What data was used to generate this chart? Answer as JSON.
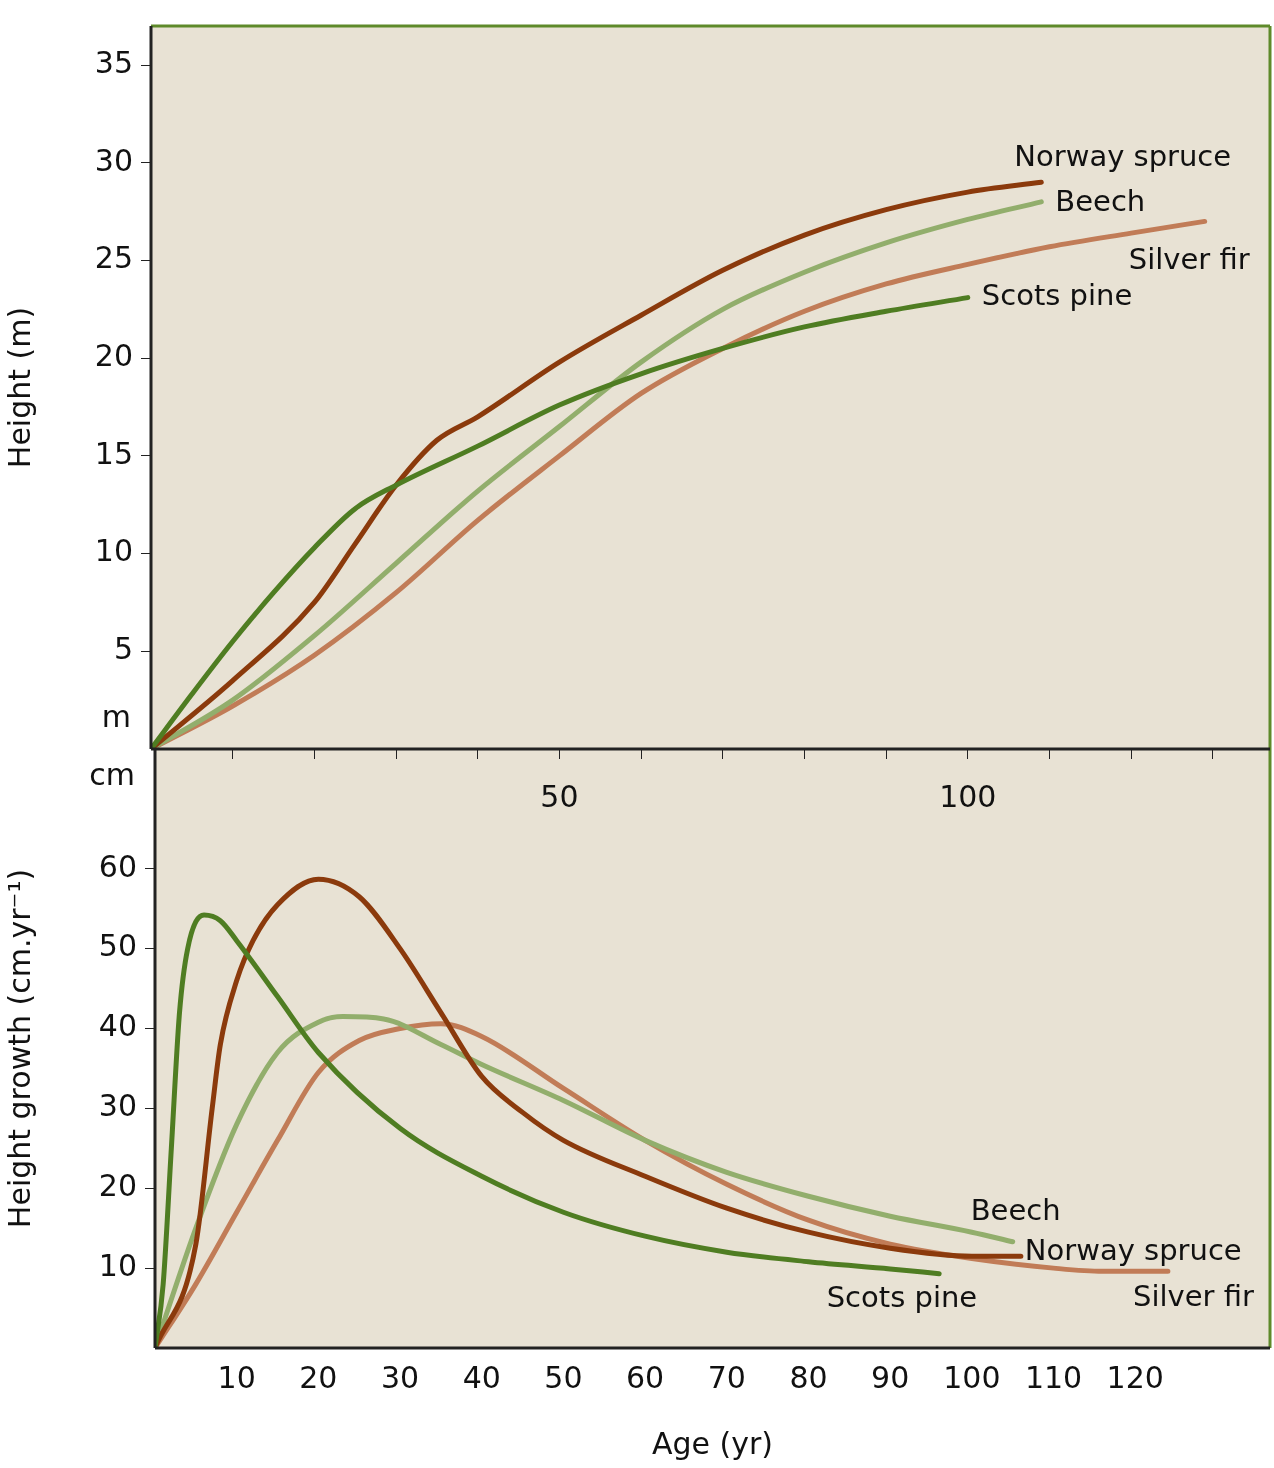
{
  "chart_data": [
    {
      "type": "line",
      "ylabel": "Height (m)",
      "annotations": [
        "m"
      ],
      "xlim": [
        0,
        137
      ],
      "xticks": [
        {
          "value": 10,
          "label": null
        },
        {
          "value": 20,
          "label": null
        },
        {
          "value": 30,
          "label": null
        },
        {
          "value": 40,
          "label": null
        },
        50,
        {
          "value": 60,
          "label": null
        },
        {
          "value": 70,
          "label": null
        },
        {
          "value": 80,
          "label": null
        },
        {
          "value": 90,
          "label": null
        },
        100,
        {
          "value": 110,
          "label": null
        },
        {
          "value": 120,
          "label": null
        },
        {
          "value": 130,
          "label": null
        }
      ],
      "ylim": [
        0,
        37
      ],
      "yticks": [
        5,
        10,
        15,
        20,
        25,
        30,
        35
      ],
      "grid": false,
      "legend": false,
      "marker": "none",
      "series": [
        {
          "name": "Scots pine",
          "color": "#4f7d22",
          "x": [
            0,
            5,
            10,
            15,
            20,
            25,
            30,
            40,
            50,
            60,
            70,
            80,
            90,
            100
          ],
          "values": [
            0,
            2.8,
            5.5,
            8,
            10.3,
            12.3,
            13.5,
            15.5,
            17.6,
            19.2,
            20.5,
            21.6,
            22.4,
            23.1
          ]
        },
        {
          "name": "Norway spruce",
          "color": "#8b3a0c",
          "x": [
            0,
            10,
            20,
            25,
            30,
            35,
            40,
            50,
            60,
            70,
            80,
            90,
            100,
            109
          ],
          "values": [
            0,
            3.5,
            7.5,
            10.5,
            13.5,
            15.8,
            17,
            19.8,
            22.2,
            24.5,
            26.3,
            27.6,
            28.5,
            29
          ]
        },
        {
          "name": "Beech",
          "color": "#92ae6c",
          "x": [
            0,
            10,
            20,
            30,
            40,
            50,
            60,
            70,
            80,
            90,
            100,
            109
          ],
          "values": [
            0,
            2.5,
            5.8,
            9.5,
            13.2,
            16.5,
            19.8,
            22.5,
            24.4,
            25.9,
            27.1,
            28
          ]
        },
        {
          "name": "Silver fir",
          "color": "#c17c57",
          "x": [
            0,
            10,
            20,
            30,
            40,
            50,
            60,
            70,
            80,
            90,
            100,
            110,
            120,
            129
          ],
          "values": [
            0,
            2.2,
            4.8,
            8,
            11.7,
            15,
            18.2,
            20.5,
            22.4,
            23.8,
            24.8,
            25.7,
            26.4,
            27
          ]
        }
      ]
    },
    {
      "type": "line",
      "xlabel": "Age (yr)",
      "ylabel": "Height growth (cm.yr⁻¹)",
      "annotations": [
        "cm"
      ],
      "xlim": [
        0,
        136.5
      ],
      "xticks": [
        10,
        20,
        30,
        40,
        50,
        60,
        70,
        80,
        90,
        100,
        110,
        120
      ],
      "ylim": [
        0,
        75
      ],
      "yticks": [
        10,
        20,
        30,
        40,
        50,
        60
      ],
      "grid": false,
      "legend": false,
      "marker": "none",
      "series": [
        {
          "name": "Scots pine",
          "color": "#4f7d22",
          "x": [
            0,
            1,
            2,
            3,
            4,
            6,
            8,
            10,
            15,
            20,
            30,
            40,
            50,
            60,
            70,
            80,
            90,
            96
          ],
          "values": [
            0,
            8,
            25,
            42,
            50,
            54.2,
            53.5,
            51,
            44,
            37,
            27.5,
            21.5,
            17,
            14,
            12,
            10.8,
            9.9,
            9.3
          ]
        },
        {
          "name": "Norway spruce",
          "color": "#8b3a0c",
          "x": [
            0,
            5,
            7,
            8,
            10,
            12,
            15,
            20,
            25,
            30,
            35,
            40,
            45,
            50,
            60,
            70,
            80,
            90,
            100,
            106
          ],
          "values": [
            0,
            13,
            30,
            38,
            46,
            51,
            55.5,
            58.7,
            56.5,
            50,
            42,
            34,
            29.5,
            26,
            21.5,
            17.5,
            14.5,
            12.5,
            11.5,
            11.5
          ]
        },
        {
          "name": "Beech",
          "color": "#92ae6c",
          "x": [
            0,
            5,
            10,
            15,
            20,
            23,
            28,
            35,
            40,
            50,
            60,
            70,
            80,
            90,
            100,
            105
          ],
          "values": [
            0,
            15,
            28,
            37,
            40.8,
            41.5,
            41.2,
            38,
            35.5,
            31,
            26,
            22,
            19,
            16.5,
            14.5,
            13.3
          ]
        },
        {
          "name": "Silver fir",
          "color": "#c17c57",
          "x": [
            0,
            5,
            10,
            15,
            20,
            25,
            30,
            35,
            40,
            50,
            60,
            70,
            80,
            90,
            100,
            110,
            116,
            124
          ],
          "values": [
            0,
            8,
            17,
            26,
            34.5,
            38.5,
            40,
            40.6,
            39,
            32.5,
            26,
            20.5,
            16,
            13,
            11.2,
            10,
            9.6,
            9.6
          ]
        }
      ]
    }
  ]
}
